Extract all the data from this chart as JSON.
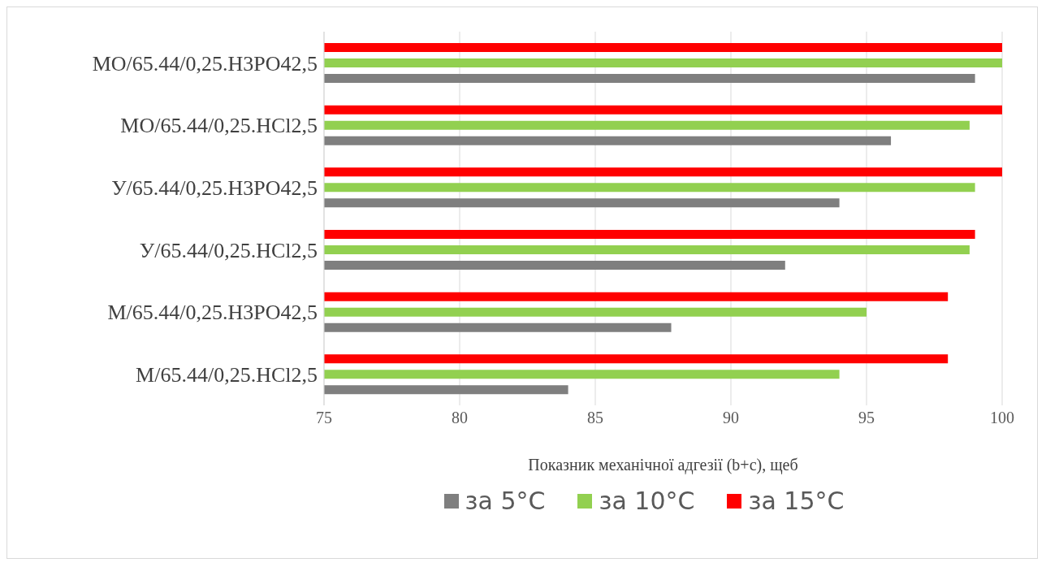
{
  "chart_data": {
    "type": "bar",
    "orientation": "horizontal",
    "xlabel": "Показник  механічної адгезії (b+c), щеб",
    "categories": [
      "MO/65.44/0,25.H3PO42,5",
      "MO/65.44/0,25.HCl2,5",
      "У/65.44/0,25.H3PO42,5",
      "У/65.44/0,25.HCl2,5",
      "M/65.44/0,25.H3PO42,5",
      "M/65.44/0,25.HCl2,5"
    ],
    "series": [
      {
        "name": "за 5°С",
        "color": "#7f7f7f",
        "values": [
          99,
          95.9,
          94,
          92,
          87.8,
          84
        ]
      },
      {
        "name": "за 10°С",
        "color": "#92d050",
        "values": [
          100,
          98.8,
          99,
          98.8,
          95,
          94
        ]
      },
      {
        "name": "за 15°С",
        "color": "#ff0000",
        "values": [
          100,
          100,
          100,
          99,
          98,
          98
        ]
      }
    ],
    "xlim": [
      75,
      100
    ],
    "xticks": [
      75,
      80,
      85,
      90,
      95,
      100
    ],
    "grid": "x",
    "legend": "bottom"
  }
}
